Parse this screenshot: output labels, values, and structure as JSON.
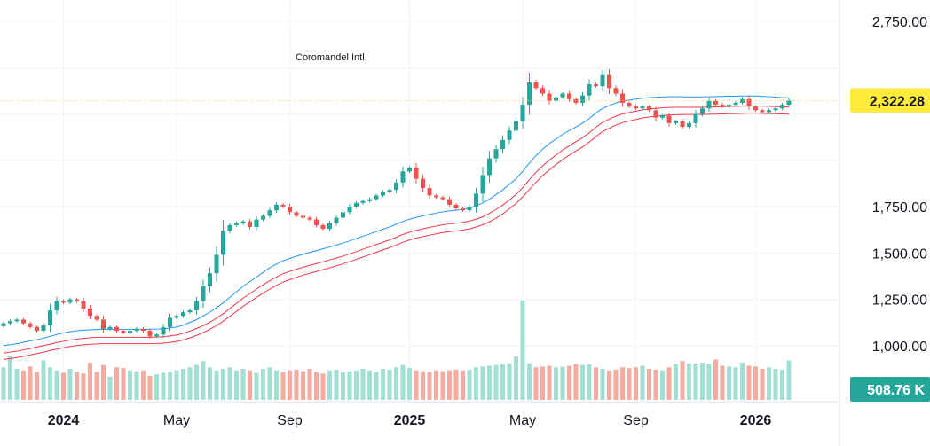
{
  "chart_data": {
    "type": "candlestick",
    "title": "Coromandel Intl,",
    "ylim": [
      750,
      2850
    ],
    "y_ticks": [
      "2,750.00",
      "1,750.00",
      "1,500.00",
      "1,250.00",
      "1,000.00"
    ],
    "x_ticks": [
      {
        "label": "2024",
        "bold": true,
        "week": 9
      },
      {
        "label": "May",
        "bold": false,
        "week": 26
      },
      {
        "label": "Sep",
        "bold": false,
        "week": 43
      },
      {
        "label": "2025",
        "bold": true,
        "week": 61
      },
      {
        "label": "May",
        "bold": false,
        "week": 78
      },
      {
        "label": "Sep",
        "bold": false,
        "week": 95
      },
      {
        "label": "2026",
        "bold": true,
        "week": 113
      }
    ],
    "last_price": {
      "value": 2322.28,
      "label": "2,322.28"
    },
    "last_volume": {
      "label": "508.76 K"
    },
    "colors": {
      "up": "#26a69a",
      "down": "#ef5350",
      "up_volume": "#a1dfd4",
      "down_volume": "#f5ab9f",
      "ma_blue": "#2196f3",
      "ma_red": "#f23645",
      "price_badge": "#ffeb3b",
      "volume_badge": "#26a69a"
    },
    "series": [
      {
        "name": "close",
        "values": [
          1120,
          1132,
          1140,
          1120,
          1100,
          1080,
          1110,
          1190,
          1240,
          1232,
          1250,
          1240,
          1200,
          1160,
          1140,
          1090,
          1100,
          1080,
          1070,
          1080,
          1090,
          1080,
          1050,
          1060,
          1100,
          1150,
          1160,
          1180,
          1190,
          1240,
          1320,
          1390,
          1490,
          1620,
          1650,
          1660,
          1670,
          1640,
          1680,
          1700,
          1730,
          1760,
          1750,
          1720,
          1700,
          1690,
          1680,
          1650,
          1630,
          1660,
          1690,
          1720,
          1750,
          1770,
          1780,
          1790,
          1810,
          1830,
          1840,
          1880,
          1940,
          1960,
          1900,
          1850,
          1810,
          1800,
          1790,
          1760,
          1740,
          1730,
          1750,
          1820,
          1920,
          2010,
          2060,
          2110,
          2160,
          2210,
          2300,
          2420,
          2390,
          2360,
          2320,
          2340,
          2360,
          2330,
          2310,
          2350,
          2410,
          2400,
          2460,
          2390,
          2360,
          2310,
          2290,
          2280,
          2290,
          2270,
          2230,
          2240,
          2200,
          2210,
          2180,
          2200,
          2250,
          2280,
          2320,
          2300,
          2290,
          2300,
          2310,
          2330,
          2290,
          2270,
          2260,
          2270,
          2280,
          2300,
          2322.28
        ]
      },
      {
        "name": "volume",
        "values": [
          420,
          560,
          400,
          380,
          430,
          360,
          510,
          420,
          380,
          350,
          400,
          360,
          340,
          480,
          360,
          450,
          300,
          420,
          410,
          380,
          370,
          380,
          310,
          330,
          350,
          360,
          380,
          400,
          420,
          450,
          500,
          420,
          380,
          400,
          420,
          380,
          400,
          380,
          350,
          400,
          420,
          380,
          360,
          380,
          390,
          370,
          400,
          360,
          340,
          380,
          390,
          360,
          370,
          380,
          400,
          380,
          360,
          400,
          390,
          420,
          450,
          410,
          380,
          370,
          360,
          380,
          370,
          380,
          390,
          380,
          390,
          420,
          430,
          440,
          450,
          460,
          470,
          560,
          1280,
          470,
          420,
          430,
          440,
          420,
          430,
          440,
          460,
          450,
          460,
          420,
          400,
          380,
          390,
          420,
          410,
          420,
          440,
          400,
          390,
          380,
          420,
          460,
          500,
          470,
          470,
          480,
          460,
          520,
          440,
          430,
          420,
          480,
          440,
          430,
          400,
          420,
          400,
          390,
          509
        ]
      },
      {
        "name": "ma_blue",
        "values": [
          1000,
          1005,
          1010,
          1018,
          1025,
          1032,
          1040,
          1050,
          1060,
          1068,
          1075,
          1080,
          1083,
          1085,
          1087,
          1088,
          1088,
          1088,
          1088,
          1088,
          1088,
          1088,
          1088,
          1089,
          1090,
          1095,
          1100,
          1110,
          1125,
          1140,
          1160,
          1180,
          1205,
          1230,
          1260,
          1290,
          1320,
          1345,
          1370,
          1395,
          1420,
          1440,
          1458,
          1470,
          1482,
          1493,
          1503,
          1512,
          1522,
          1532,
          1542,
          1553,
          1565,
          1577,
          1590,
          1602,
          1615,
          1628,
          1640,
          1655,
          1670,
          1682,
          1692,
          1700,
          1708,
          1715,
          1722,
          1727,
          1730,
          1735,
          1742,
          1755,
          1770,
          1790,
          1815,
          1840,
          1870,
          1900,
          1940,
          1985,
          2025,
          2060,
          2090,
          2115,
          2140,
          2160,
          2180,
          2200,
          2225,
          2255,
          2280,
          2295,
          2310,
          2320,
          2325,
          2330,
          2335,
          2338,
          2340,
          2342,
          2343,
          2343,
          2343,
          2342,
          2342,
          2342,
          2343,
          2344,
          2345,
          2345,
          2346,
          2347,
          2347,
          2347,
          2345,
          2343,
          2341,
          2338,
          2336
        ]
      },
      {
        "name": "ma_red_1",
        "values": [
          960,
          965,
          970,
          977,
          984,
          992,
          1000,
          1008,
          1016,
          1023,
          1030,
          1035,
          1039,
          1042,
          1044,
          1045,
          1045,
          1045,
          1045,
          1045,
          1045,
          1045,
          1045,
          1046,
          1048,
          1052,
          1057,
          1066,
          1078,
          1092,
          1108,
          1126,
          1148,
          1172,
          1200,
          1228,
          1256,
          1280,
          1305,
          1328,
          1350,
          1370,
          1388,
          1400,
          1412,
          1423,
          1433,
          1442,
          1452,
          1462,
          1472,
          1483,
          1495,
          1507,
          1520,
          1532,
          1545,
          1558,
          1570,
          1585,
          1600,
          1612,
          1622,
          1630,
          1638,
          1645,
          1652,
          1657,
          1660,
          1665,
          1672,
          1682,
          1695,
          1713,
          1735,
          1758,
          1786,
          1815,
          1852,
          1895,
          1935,
          1970,
          2000,
          2028,
          2055,
          2078,
          2100,
          2122,
          2148,
          2178,
          2205,
          2222,
          2238,
          2250,
          2258,
          2265,
          2272,
          2277,
          2280,
          2283,
          2285,
          2286,
          2286,
          2286,
          2286,
          2286,
          2287,
          2288,
          2289,
          2290,
          2291,
          2292,
          2293,
          2293,
          2292,
          2291,
          2290,
          2289,
          2288
        ]
      },
      {
        "name": "ma_red_2",
        "values": [
          925,
          930,
          935,
          942,
          949,
          957,
          965,
          973,
          981,
          988,
          995,
          1000,
          1004,
          1007,
          1009,
          1010,
          1010,
          1010,
          1010,
          1010,
          1010,
          1010,
          1010,
          1011,
          1013,
          1017,
          1022,
          1030,
          1042,
          1055,
          1070,
          1088,
          1108,
          1132,
          1158,
          1185,
          1212,
          1236,
          1260,
          1283,
          1305,
          1325,
          1343,
          1356,
          1368,
          1380,
          1390,
          1400,
          1410,
          1420,
          1430,
          1441,
          1453,
          1465,
          1478,
          1490,
          1503,
          1516,
          1528,
          1542,
          1557,
          1570,
          1580,
          1588,
          1596,
          1603,
          1610,
          1615,
          1618,
          1623,
          1630,
          1640,
          1652,
          1668,
          1688,
          1710,
          1738,
          1767,
          1802,
          1843,
          1882,
          1917,
          1948,
          1977,
          2004,
          2028,
          2050,
          2072,
          2098,
          2127,
          2155,
          2173,
          2190,
          2203,
          2212,
          2220,
          2228,
          2234,
          2238,
          2241,
          2244,
          2246,
          2247,
          2247,
          2247,
          2247,
          2248,
          2249,
          2250,
          2251,
          2252,
          2253,
          2254,
          2254,
          2253,
          2252,
          2251,
          2250,
          2249
        ]
      }
    ]
  }
}
